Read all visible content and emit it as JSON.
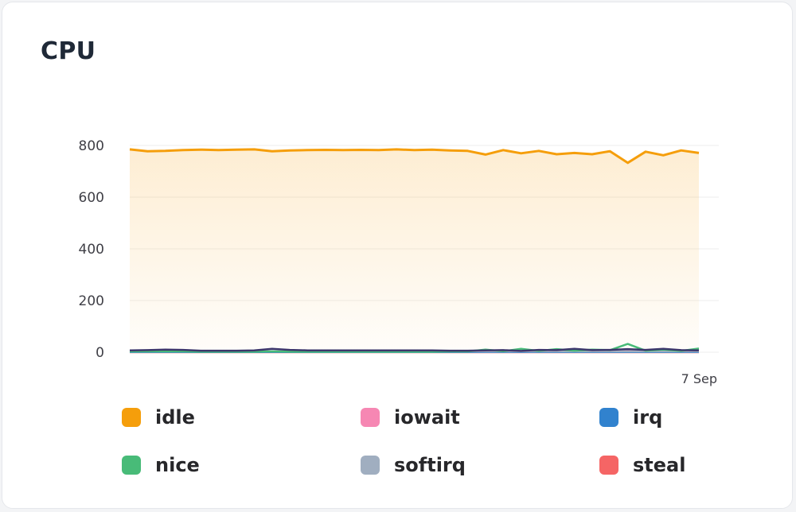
{
  "card": {
    "title": "CPU"
  },
  "chart_data": {
    "type": "line",
    "title": "CPU",
    "ylim": [
      0,
      800
    ],
    "yticks": [
      0,
      200,
      400,
      600,
      800
    ],
    "x_tick_labels": [
      "7 Sep"
    ],
    "grid": true,
    "legend_position": "bottom",
    "series": [
      {
        "name": "idle",
        "color": "#f59e0b",
        "fill": true,
        "values": [
          785,
          778,
          779,
          782,
          784,
          782,
          784,
          785,
          778,
          781,
          782,
          783,
          782,
          783,
          782,
          785,
          782,
          784,
          781,
          779,
          765,
          782,
          770,
          779,
          766,
          771,
          766,
          778,
          733,
          776,
          762,
          781,
          771
        ]
      },
      {
        "name": "iowait",
        "color": "#f687b3",
        "values": [
          2,
          2,
          2,
          2,
          2,
          2,
          2,
          2,
          2,
          2,
          2,
          2,
          2,
          2,
          2,
          2,
          2,
          2,
          2,
          2,
          3,
          2,
          3,
          2,
          3,
          2,
          3,
          2,
          4,
          2,
          3,
          2,
          3
        ]
      },
      {
        "name": "irq",
        "color": "#3182ce",
        "values": [
          1,
          1,
          1,
          1,
          1,
          1,
          1,
          1,
          1,
          1,
          1,
          1,
          1,
          1,
          1,
          1,
          1,
          1,
          1,
          1,
          1,
          1,
          1,
          1,
          1,
          1,
          1,
          1,
          1,
          1,
          1,
          1,
          1
        ]
      },
      {
        "name": "nice",
        "color": "#48bb78",
        "values": [
          3,
          3,
          3,
          3,
          2,
          2,
          2,
          2,
          3,
          2,
          2,
          2,
          2,
          2,
          2,
          2,
          2,
          2,
          3,
          3,
          10,
          4,
          13,
          5,
          12,
          6,
          10,
          8,
          32,
          6,
          10,
          5,
          14
        ]
      },
      {
        "name": "softirq",
        "color": "#a0aec0",
        "values": [
          3,
          3,
          3,
          3,
          3,
          3,
          3,
          3,
          3,
          3,
          3,
          3,
          3,
          3,
          3,
          3,
          3,
          3,
          3,
          3,
          3,
          3,
          3,
          3,
          3,
          3,
          3,
          3,
          3,
          3,
          3,
          3,
          3
        ]
      },
      {
        "name": "steal",
        "color": "#f56565",
        "values": [
          0,
          0,
          0,
          0,
          0,
          0,
          0,
          0,
          0,
          0,
          0,
          0,
          0,
          0,
          0,
          0,
          0,
          0,
          0,
          0,
          0,
          0,
          0,
          0,
          0,
          0,
          0,
          0,
          0,
          0,
          0,
          0,
          0
        ]
      },
      {
        "color": "#3c366b",
        "values": [
          7,
          8,
          10,
          9,
          6,
          6,
          6,
          7,
          13,
          9,
          7,
          7,
          7,
          7,
          7,
          7,
          7,
          7,
          6,
          6,
          7,
          8,
          5,
          9,
          8,
          13,
          8,
          9,
          12,
          9,
          13,
          8,
          7
        ]
      }
    ]
  },
  "legend": [
    {
      "label": "idle",
      "color": "#f59e0b"
    },
    {
      "label": "iowait",
      "color": "#f687b3"
    },
    {
      "label": "irq",
      "color": "#3182ce"
    },
    {
      "label": "nice",
      "color": "#48bb78"
    },
    {
      "label": "softirq",
      "color": "#a0aec0"
    },
    {
      "label": "steal",
      "color": "#f56565"
    }
  ]
}
